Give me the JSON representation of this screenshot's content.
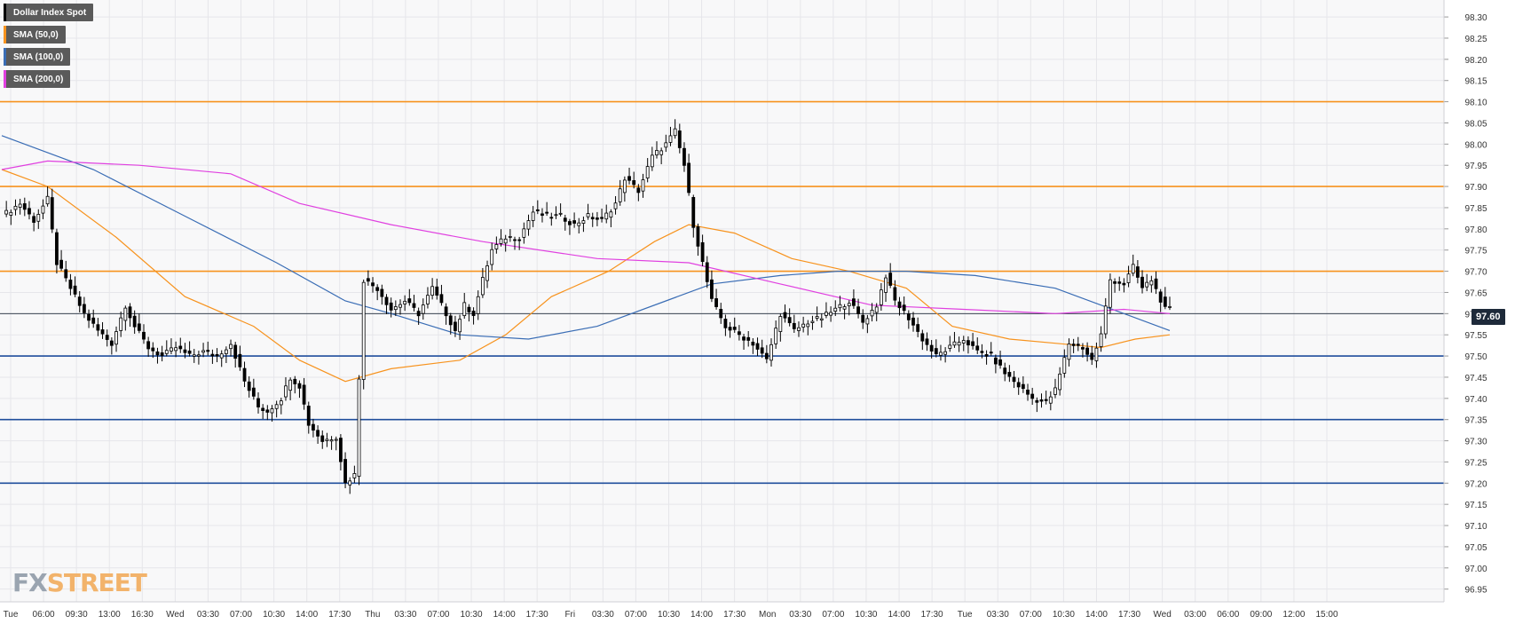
{
  "legend": [
    {
      "label": "Dollar Index Spot",
      "color": "#000000"
    },
    {
      "label": "SMA (50,0)",
      "color": "#f7931e"
    },
    {
      "label": "SMA (100,0)",
      "color": "#3a6db5"
    },
    {
      "label": "SMA (200,0)",
      "color": "#e040e0"
    }
  ],
  "watermark": {
    "part1": "FX",
    "part2": "STREET"
  },
  "last_price": "97.60",
  "chart_data": {
    "type": "candlestick",
    "title": "",
    "ylim": [
      96.92,
      98.34
    ],
    "y_ticks": [
      "98.30",
      "98.25",
      "98.20",
      "98.15",
      "98.10",
      "98.05",
      "98.00",
      "97.95",
      "97.90",
      "97.85",
      "97.80",
      "97.75",
      "97.70",
      "97.65",
      "97.60",
      "97.55",
      "97.50",
      "97.45",
      "97.40",
      "97.35",
      "97.30",
      "97.25",
      "97.20",
      "97.15",
      "97.10",
      "97.05",
      "97.00",
      "96.95"
    ],
    "x_ticks": [
      "Tue",
      "06:00",
      "09:30",
      "13:00",
      "16:30",
      "Wed",
      "03:30",
      "07:00",
      "10:30",
      "14:00",
      "17:30",
      "Thu",
      "03:30",
      "07:00",
      "10:30",
      "14:00",
      "17:30",
      "Fri",
      "03:30",
      "07:00",
      "10:30",
      "14:00",
      "17:30",
      "Mon",
      "03:30",
      "07:00",
      "10:30",
      "14:00",
      "17:30",
      "Tue",
      "03:30",
      "07:00",
      "10:30",
      "14:00",
      "17:30",
      "Wed",
      "03:00",
      "06:00",
      "09:00",
      "12:00",
      "15:00"
    ],
    "grid": true,
    "horizontal_levels": [
      {
        "value": 98.1,
        "color": "#f7931e"
      },
      {
        "value": 97.9,
        "color": "#f7931e"
      },
      {
        "value": 97.7,
        "color": "#f7931e"
      },
      {
        "value": 97.5,
        "color": "#1f4e9c"
      },
      {
        "value": 97.35,
        "color": "#1f4e9c"
      },
      {
        "value": 97.2,
        "color": "#1f4e9c"
      }
    ],
    "last_price_line": 97.6,
    "price_path": [
      [
        0,
        97.83
      ],
      [
        8,
        97.86
      ],
      [
        14,
        97.82
      ],
      [
        20,
        97.87
      ],
      [
        24,
        97.72
      ],
      [
        30,
        97.66
      ],
      [
        36,
        97.6
      ],
      [
        42,
        97.56
      ],
      [
        48,
        97.53
      ],
      [
        54,
        97.62
      ],
      [
        58,
        97.57
      ],
      [
        64,
        97.52
      ],
      [
        70,
        97.5
      ],
      [
        76,
        97.52
      ],
      [
        82,
        97.5
      ],
      [
        88,
        97.51
      ],
      [
        94,
        97.5
      ],
      [
        100,
        97.53
      ],
      [
        106,
        97.44
      ],
      [
        112,
        97.38
      ],
      [
        116,
        97.37
      ],
      [
        122,
        97.4
      ],
      [
        126,
        97.45
      ],
      [
        130,
        97.43
      ],
      [
        134,
        97.34
      ],
      [
        140,
        97.3
      ],
      [
        146,
        97.31
      ],
      [
        150,
        97.2
      ],
      [
        154,
        97.22
      ],
      [
        158,
        97.68
      ],
      [
        164,
        97.66
      ],
      [
        170,
        97.61
      ],
      [
        176,
        97.63
      ],
      [
        182,
        97.6
      ],
      [
        188,
        97.66
      ],
      [
        192,
        97.62
      ],
      [
        198,
        97.56
      ],
      [
        202,
        97.62
      ],
      [
        206,
        97.6
      ],
      [
        210,
        97.68
      ],
      [
        214,
        97.75
      ],
      [
        220,
        97.78
      ],
      [
        226,
        97.78
      ],
      [
        232,
        97.84
      ],
      [
        238,
        97.83
      ],
      [
        244,
        97.83
      ],
      [
        250,
        97.81
      ],
      [
        256,
        97.83
      ],
      [
        262,
        97.82
      ],
      [
        268,
        97.86
      ],
      [
        272,
        97.92
      ],
      [
        278,
        97.89
      ],
      [
        284,
        97.97
      ],
      [
        290,
        98.0
      ],
      [
        294,
        98.03
      ],
      [
        298,
        97.95
      ],
      [
        302,
        97.81
      ],
      [
        306,
        97.72
      ],
      [
        310,
        97.63
      ],
      [
        316,
        97.57
      ],
      [
        322,
        97.55
      ],
      [
        328,
        97.53
      ],
      [
        334,
        97.49
      ],
      [
        340,
        97.6
      ],
      [
        346,
        97.56
      ],
      [
        352,
        97.58
      ],
      [
        358,
        97.59
      ],
      [
        364,
        97.61
      ],
      [
        370,
        97.63
      ],
      [
        376,
        97.58
      ],
      [
        382,
        97.62
      ],
      [
        386,
        97.69
      ],
      [
        390,
        97.63
      ],
      [
        396,
        97.59
      ],
      [
        402,
        97.54
      ],
      [
        408,
        97.5
      ],
      [
        414,
        97.52
      ],
      [
        420,
        97.54
      ],
      [
        426,
        97.51
      ],
      [
        432,
        97.5
      ],
      [
        438,
        97.46
      ],
      [
        444,
        97.43
      ],
      [
        450,
        97.4
      ],
      [
        456,
        97.39
      ],
      [
        460,
        97.42
      ],
      [
        466,
        97.53
      ],
      [
        472,
        97.52
      ],
      [
        476,
        97.49
      ],
      [
        480,
        97.55
      ],
      [
        484,
        97.68
      ],
      [
        490,
        97.67
      ],
      [
        494,
        97.71
      ],
      [
        498,
        97.66
      ],
      [
        502,
        97.68
      ],
      [
        508,
        97.61
      ]
    ],
    "series": [
      {
        "name": "SMA (50,0)",
        "color": "#f7931e",
        "points": [
          [
            0,
            97.94
          ],
          [
            20,
            97.9
          ],
          [
            50,
            97.78
          ],
          [
            80,
            97.64
          ],
          [
            110,
            97.57
          ],
          [
            130,
            97.49
          ],
          [
            150,
            97.44
          ],
          [
            170,
            97.47
          ],
          [
            200,
            97.49
          ],
          [
            220,
            97.55
          ],
          [
            240,
            97.64
          ],
          [
            265,
            97.7
          ],
          [
            285,
            97.77
          ],
          [
            300,
            97.81
          ],
          [
            320,
            97.79
          ],
          [
            345,
            97.73
          ],
          [
            370,
            97.7
          ],
          [
            395,
            97.66
          ],
          [
            415,
            97.57
          ],
          [
            440,
            97.54
          ],
          [
            460,
            97.53
          ],
          [
            480,
            97.52
          ],
          [
            495,
            97.54
          ],
          [
            510,
            97.55
          ]
        ]
      },
      {
        "name": "SMA (100,0)",
        "color": "#3a6db5",
        "points": [
          [
            0,
            98.02
          ],
          [
            40,
            97.94
          ],
          [
            80,
            97.83
          ],
          [
            120,
            97.72
          ],
          [
            150,
            97.63
          ],
          [
            170,
            97.6
          ],
          [
            200,
            97.55
          ],
          [
            230,
            97.54
          ],
          [
            260,
            97.57
          ],
          [
            290,
            97.63
          ],
          [
            310,
            97.67
          ],
          [
            340,
            97.69
          ],
          [
            365,
            97.7
          ],
          [
            395,
            97.7
          ],
          [
            425,
            97.69
          ],
          [
            460,
            97.66
          ],
          [
            490,
            97.6
          ],
          [
            510,
            97.56
          ]
        ]
      },
      {
        "name": "SMA (200,0)",
        "color": "#e040e0",
        "points": [
          [
            0,
            97.94
          ],
          [
            20,
            97.96
          ],
          [
            60,
            97.95
          ],
          [
            100,
            97.93
          ],
          [
            130,
            97.86
          ],
          [
            170,
            97.81
          ],
          [
            210,
            97.77
          ],
          [
            260,
            97.73
          ],
          [
            300,
            97.72
          ],
          [
            340,
            97.67
          ],
          [
            380,
            97.62
          ],
          [
            420,
            97.61
          ],
          [
            460,
            97.6
          ],
          [
            490,
            97.61
          ],
          [
            510,
            97.6
          ]
        ]
      }
    ]
  }
}
